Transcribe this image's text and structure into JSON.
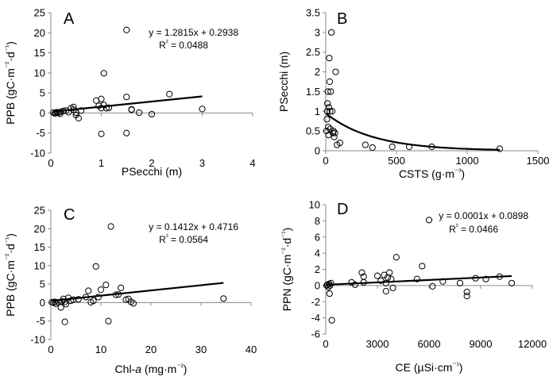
{
  "figure": {
    "panels": [
      {
        "type": "scatter",
        "panel_label": "A",
        "xlabel": "PSecchi (m)",
        "ylabel": "PPB (gC·m⁻²·d⁻¹)",
        "xlim": [
          0,
          4
        ],
        "ylim": [
          -10,
          25
        ],
        "xticks": [
          0,
          1,
          2,
          3,
          4
        ],
        "yticks": [
          -10,
          -5,
          0,
          5,
          10,
          15,
          20,
          25
        ],
        "xtick_labels": [
          "0",
          "1",
          "2",
          "3",
          "4"
        ],
        "ytick_labels": [
          "-10",
          "-5",
          "0",
          "5",
          "10",
          "15",
          "20",
          "25"
        ],
        "equation": "y = 1.2815x + 0.2938",
        "r2": "R² = 0.0488",
        "trendline": {
          "kind": "linear",
          "slope": 1.2815,
          "intercept": 0.2938,
          "x_range": [
            0.05,
            3.0
          ]
        },
        "points": [
          [
            0.05,
            0.1
          ],
          [
            0.08,
            -0.1
          ],
          [
            0.1,
            0.0
          ],
          [
            0.12,
            0.2
          ],
          [
            0.15,
            0.1
          ],
          [
            0.18,
            -0.2
          ],
          [
            0.2,
            0.3
          ],
          [
            0.25,
            0.5
          ],
          [
            0.3,
            0.6
          ],
          [
            0.35,
            0.2
          ],
          [
            0.4,
            1.2
          ],
          [
            0.45,
            0.8
          ],
          [
            0.45,
            1.5
          ],
          [
            0.5,
            0.1
          ],
          [
            0.5,
            -0.5
          ],
          [
            0.55,
            -1.3
          ],
          [
            0.6,
            0.6
          ],
          [
            0.9,
            3.1
          ],
          [
            0.95,
            1.8
          ],
          [
            1.0,
            3.5
          ],
          [
            1.0,
            1.2
          ],
          [
            1.05,
            2.0
          ],
          [
            1.05,
            9.9
          ],
          [
            1.1,
            1.2
          ],
          [
            1.15,
            1.3
          ],
          [
            1.0,
            -5.2
          ],
          [
            1.5,
            -5.0
          ],
          [
            1.5,
            20.7
          ],
          [
            1.5,
            4.0
          ],
          [
            1.6,
            0.9
          ],
          [
            1.6,
            0.8
          ],
          [
            1.75,
            0.1
          ],
          [
            2.0,
            -0.3
          ],
          [
            2.35,
            4.7
          ],
          [
            3.0,
            1.0
          ]
        ]
      },
      {
        "type": "scatter",
        "panel_label": "B",
        "xlabel": "CSTS (g·m⁻³)",
        "ylabel": "PSecchi (m)",
        "xlim": [
          0,
          1500
        ],
        "ylim": [
          0,
          3.5
        ],
        "xticks": [
          0,
          500,
          1000,
          1500
        ],
        "yticks": [
          0,
          0.5,
          1,
          1.5,
          2,
          2.5,
          3,
          3.5
        ],
        "xtick_labels": [
          "0",
          "500",
          "1000",
          "1500"
        ],
        "ytick_labels": [
          "0",
          "0.5",
          "1",
          "1.5",
          "2",
          "2.5",
          "3",
          "3.5"
        ],
        "trendline": {
          "kind": "exponential",
          "a": 0.95,
          "b": -0.003,
          "x_range": [
            2,
            1230
          ]
        },
        "points": [
          [
            5,
            0.5
          ],
          [
            8,
            0.8
          ],
          [
            10,
            1.0
          ],
          [
            12,
            1.2
          ],
          [
            15,
            1.5
          ],
          [
            18,
            0.6
          ],
          [
            20,
            0.4
          ],
          [
            22,
            1.1
          ],
          [
            25,
            2.35
          ],
          [
            28,
            1.75
          ],
          [
            30,
            1.0
          ],
          [
            32,
            0.55
          ],
          [
            35,
            1.5
          ],
          [
            40,
            3.0
          ],
          [
            45,
            1.0
          ],
          [
            50,
            0.45
          ],
          [
            55,
            0.5
          ],
          [
            60,
            0.35
          ],
          [
            65,
            0.45
          ],
          [
            70,
            2.0
          ],
          [
            80,
            0.15
          ],
          [
            100,
            0.2
          ],
          [
            280,
            0.15
          ],
          [
            330,
            0.08
          ],
          [
            470,
            0.1
          ],
          [
            590,
            0.1
          ],
          [
            750,
            0.1
          ],
          [
            1230,
            0.05
          ]
        ]
      },
      {
        "type": "scatter",
        "panel_label": "C",
        "xlabel": "Chl-a (mg·m⁻²)",
        "ylabel": "PPB (gC·m⁻²·d⁻¹)",
        "xlim": [
          0,
          40
        ],
        "ylim": [
          -10,
          25
        ],
        "xticks": [
          0,
          10,
          20,
          30,
          40
        ],
        "yticks": [
          -10,
          -5,
          0,
          5,
          10,
          15,
          20,
          25
        ],
        "xtick_labels": [
          "0",
          "10",
          "20",
          "30",
          "40"
        ],
        "ytick_labels": [
          "-10",
          "-5",
          "0",
          "5",
          "10",
          "15",
          "20",
          "25"
        ],
        "equation": "y = 0.1412x + 0.4716",
        "r2": "R² = 0.0564",
        "trendline": {
          "kind": "linear",
          "slope": 0.1412,
          "intercept": 0.4716,
          "x_range": [
            0.2,
            34.5
          ]
        },
        "points": [
          [
            0.2,
            0.1
          ],
          [
            0.5,
            0.0
          ],
          [
            0.8,
            0.2
          ],
          [
            1.0,
            -0.3
          ],
          [
            1.5,
            0.1
          ],
          [
            2.0,
            -1.3
          ],
          [
            2.2,
            0.3
          ],
          [
            2.5,
            1.0
          ],
          [
            2.8,
            0.2
          ],
          [
            3.0,
            -0.4
          ],
          [
            2.8,
            -5.2
          ],
          [
            3.5,
            1.3
          ],
          [
            4.0,
            0.5
          ],
          [
            4.5,
            0.8
          ],
          [
            5.5,
            0.9
          ],
          [
            7.0,
            1.5
          ],
          [
            7.5,
            3.2
          ],
          [
            8.0,
            0.1
          ],
          [
            8.5,
            0.5
          ],
          [
            9.0,
            9.8
          ],
          [
            9.5,
            1.5
          ],
          [
            10.0,
            3.5
          ],
          [
            11.0,
            4.8
          ],
          [
            11.5,
            -5.0
          ],
          [
            12.0,
            20.6
          ],
          [
            13.0,
            2.1
          ],
          [
            13.5,
            2.2
          ],
          [
            14.0,
            4.0
          ],
          [
            15.0,
            0.8
          ],
          [
            15.5,
            1.0
          ],
          [
            16.0,
            0.2
          ],
          [
            16.5,
            -0.2
          ],
          [
            34.5,
            1.1
          ]
        ]
      },
      {
        "type": "scatter",
        "panel_label": "D",
        "xlabel": "CE (µSi·cm⁻¹)",
        "ylabel": "PPN (gC·m⁻²·d⁻¹)",
        "xlim": [
          0,
          12000
        ],
        "ylim": [
          -6,
          10
        ],
        "xticks": [
          0,
          3000,
          6000,
          9000,
          12000
        ],
        "yticks": [
          -6,
          -4,
          -2,
          0,
          2,
          4,
          6,
          8,
          10
        ],
        "xtick_labels": [
          "0",
          "3000",
          "6000",
          "9000",
          "12000"
        ],
        "ytick_labels": [
          "-6",
          "-4",
          "-2",
          "0",
          "2",
          "4",
          "6",
          "8",
          "10"
        ],
        "equation": "y = 0.0001x + 0.0898",
        "r2": "R² = 0.0466",
        "trendline": {
          "kind": "linear",
          "slope": 0.0001,
          "intercept": 0.0898,
          "x_range": [
            0,
            10800
          ]
        },
        "points": [
          [
            50,
            0.0
          ],
          [
            100,
            0.1
          ],
          [
            150,
            -0.2
          ],
          [
            200,
            0.2
          ],
          [
            220,
            -1.0
          ],
          [
            250,
            0.0
          ],
          [
            300,
            0.3
          ],
          [
            350,
            -4.3
          ],
          [
            1500,
            0.4
          ],
          [
            1700,
            0.1
          ],
          [
            2100,
            1.6
          ],
          [
            2200,
            1.1
          ],
          [
            2200,
            0.4
          ],
          [
            3000,
            1.2
          ],
          [
            3200,
            0.6
          ],
          [
            3400,
            1.3
          ],
          [
            3500,
            0.3
          ],
          [
            3500,
            -0.7
          ],
          [
            3600,
            1.0
          ],
          [
            3700,
            1.6
          ],
          [
            3800,
            0.8
          ],
          [
            3900,
            -0.3
          ],
          [
            4100,
            3.5
          ],
          [
            5300,
            0.8
          ],
          [
            5600,
            2.4
          ],
          [
            6000,
            8.1
          ],
          [
            6200,
            -0.1
          ],
          [
            6800,
            0.5
          ],
          [
            7800,
            0.3
          ],
          [
            8200,
            -0.8
          ],
          [
            8200,
            -1.3
          ],
          [
            8700,
            0.9
          ],
          [
            9300,
            0.8
          ],
          [
            10100,
            1.1
          ],
          [
            10800,
            0.3
          ]
        ]
      }
    ]
  }
}
